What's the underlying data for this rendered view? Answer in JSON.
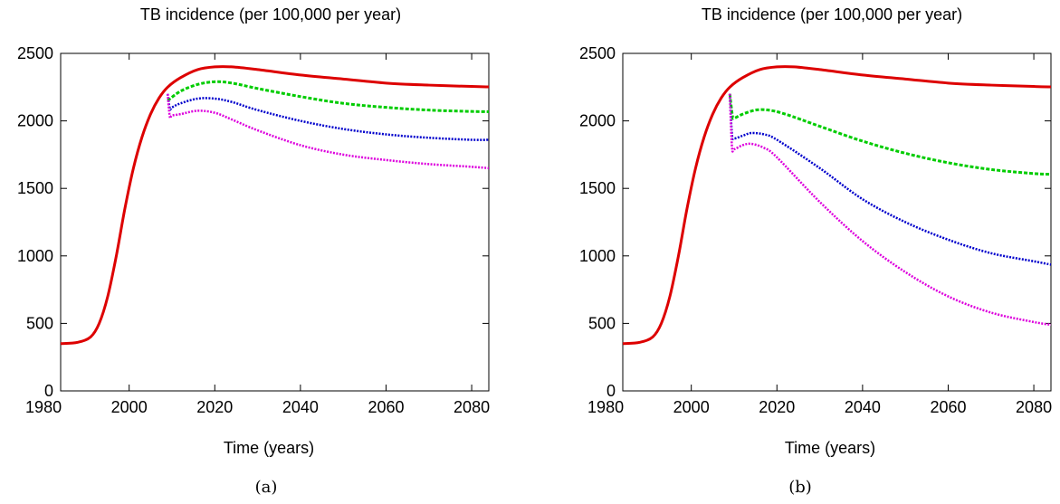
{
  "chart_data": [
    {
      "type": "line",
      "caption": "(a)",
      "title": "TB incidence (per 100,000 per year)",
      "xlabel": "Time (years)",
      "ylabel": "",
      "xlim": [
        1984,
        2084
      ],
      "ylim": [
        0,
        2500
      ],
      "xticks": [
        1980,
        2000,
        2020,
        2040,
        2060,
        2080
      ],
      "yticks": [
        0,
        500,
        1000,
        1500,
        2000,
        2500
      ],
      "grid": false,
      "series": [
        {
          "color": "#dd0000",
          "style": "solid",
          "x": [
            1984,
            1988,
            1991,
            1993,
            1995,
            1997,
            1999,
            2001,
            2003,
            2005,
            2007,
            2009,
            2012,
            2016,
            2020,
            2024,
            2030,
            2040,
            2050,
            2060,
            2070,
            2080,
            2084
          ],
          "y": [
            350,
            360,
            400,
            500,
            700,
            1000,
            1350,
            1650,
            1880,
            2050,
            2170,
            2250,
            2320,
            2380,
            2400,
            2400,
            2380,
            2340,
            2310,
            2280,
            2265,
            2255,
            2252
          ]
        },
        {
          "color": "#00cc00",
          "style": "dashed",
          "x": [
            2009,
            2012,
            2016,
            2020,
            2024,
            2030,
            2040,
            2050,
            2060,
            2070,
            2080,
            2084
          ],
          "y": [
            2150,
            2220,
            2270,
            2290,
            2280,
            2240,
            2180,
            2130,
            2100,
            2080,
            2070,
            2068
          ]
        },
        {
          "color": "#0000cc",
          "style": "dotted",
          "x": [
            2009,
            2009.5,
            2010,
            2012,
            2016,
            2020,
            2024,
            2030,
            2040,
            2050,
            2060,
            2070,
            2080,
            2084
          ],
          "y": [
            2200,
            2090,
            2100,
            2130,
            2165,
            2165,
            2140,
            2080,
            2000,
            1940,
            1900,
            1875,
            1860,
            1860
          ]
        },
        {
          "color": "#dd00dd",
          "style": "dotted",
          "x": [
            2009,
            2009.5,
            2010,
            2012,
            2016,
            2020,
            2024,
            2030,
            2040,
            2050,
            2060,
            2070,
            2080,
            2084
          ],
          "y": [
            2200,
            2030,
            2040,
            2050,
            2075,
            2060,
            2010,
            1930,
            1820,
            1750,
            1710,
            1680,
            1660,
            1650
          ]
        }
      ]
    },
    {
      "type": "line",
      "caption": "(b)",
      "title": "TB incidence (per 100,000 per year)",
      "xlabel": "Time (years)",
      "ylabel": "",
      "xlim": [
        1984,
        2084
      ],
      "ylim": [
        0,
        2500
      ],
      "xticks": [
        1980,
        2000,
        2020,
        2040,
        2060,
        2080
      ],
      "yticks": [
        0,
        500,
        1000,
        1500,
        2000,
        2500
      ],
      "grid": false,
      "series": [
        {
          "color": "#dd0000",
          "style": "solid",
          "x": [
            1984,
            1988,
            1991,
            1993,
            1995,
            1997,
            1999,
            2001,
            2003,
            2005,
            2007,
            2009,
            2012,
            2016,
            2020,
            2024,
            2030,
            2040,
            2050,
            2060,
            2070,
            2080,
            2084
          ],
          "y": [
            350,
            360,
            400,
            500,
            700,
            1000,
            1350,
            1650,
            1880,
            2050,
            2170,
            2250,
            2320,
            2380,
            2400,
            2400,
            2380,
            2340,
            2310,
            2280,
            2265,
            2255,
            2252
          ]
        },
        {
          "color": "#00cc00",
          "style": "dashed",
          "x": [
            2009,
            2009.6,
            2010,
            2012,
            2015,
            2018,
            2022,
            2030,
            2040,
            2050,
            2060,
            2070,
            2080,
            2084
          ],
          "y": [
            2200,
            2040,
            2020,
            2050,
            2080,
            2080,
            2050,
            1960,
            1850,
            1760,
            1690,
            1640,
            1610,
            1605
          ]
        },
        {
          "color": "#0000cc",
          "style": "dotted",
          "x": [
            2009,
            2009.5,
            2010,
            2012,
            2014,
            2017,
            2020,
            2030,
            2040,
            2050,
            2060,
            2070,
            2080,
            2084
          ],
          "y": [
            2200,
            1900,
            1870,
            1890,
            1910,
            1900,
            1860,
            1650,
            1420,
            1250,
            1120,
            1020,
            960,
            935
          ]
        },
        {
          "color": "#dd00dd",
          "style": "dotted",
          "x": [
            2009,
            2009.5,
            2010,
            2012,
            2014,
            2017,
            2020,
            2030,
            2040,
            2050,
            2060,
            2070,
            2080,
            2084
          ],
          "y": [
            2200,
            1810,
            1790,
            1820,
            1830,
            1800,
            1730,
            1400,
            1110,
            880,
            700,
            580,
            510,
            490
          ]
        }
      ]
    }
  ]
}
